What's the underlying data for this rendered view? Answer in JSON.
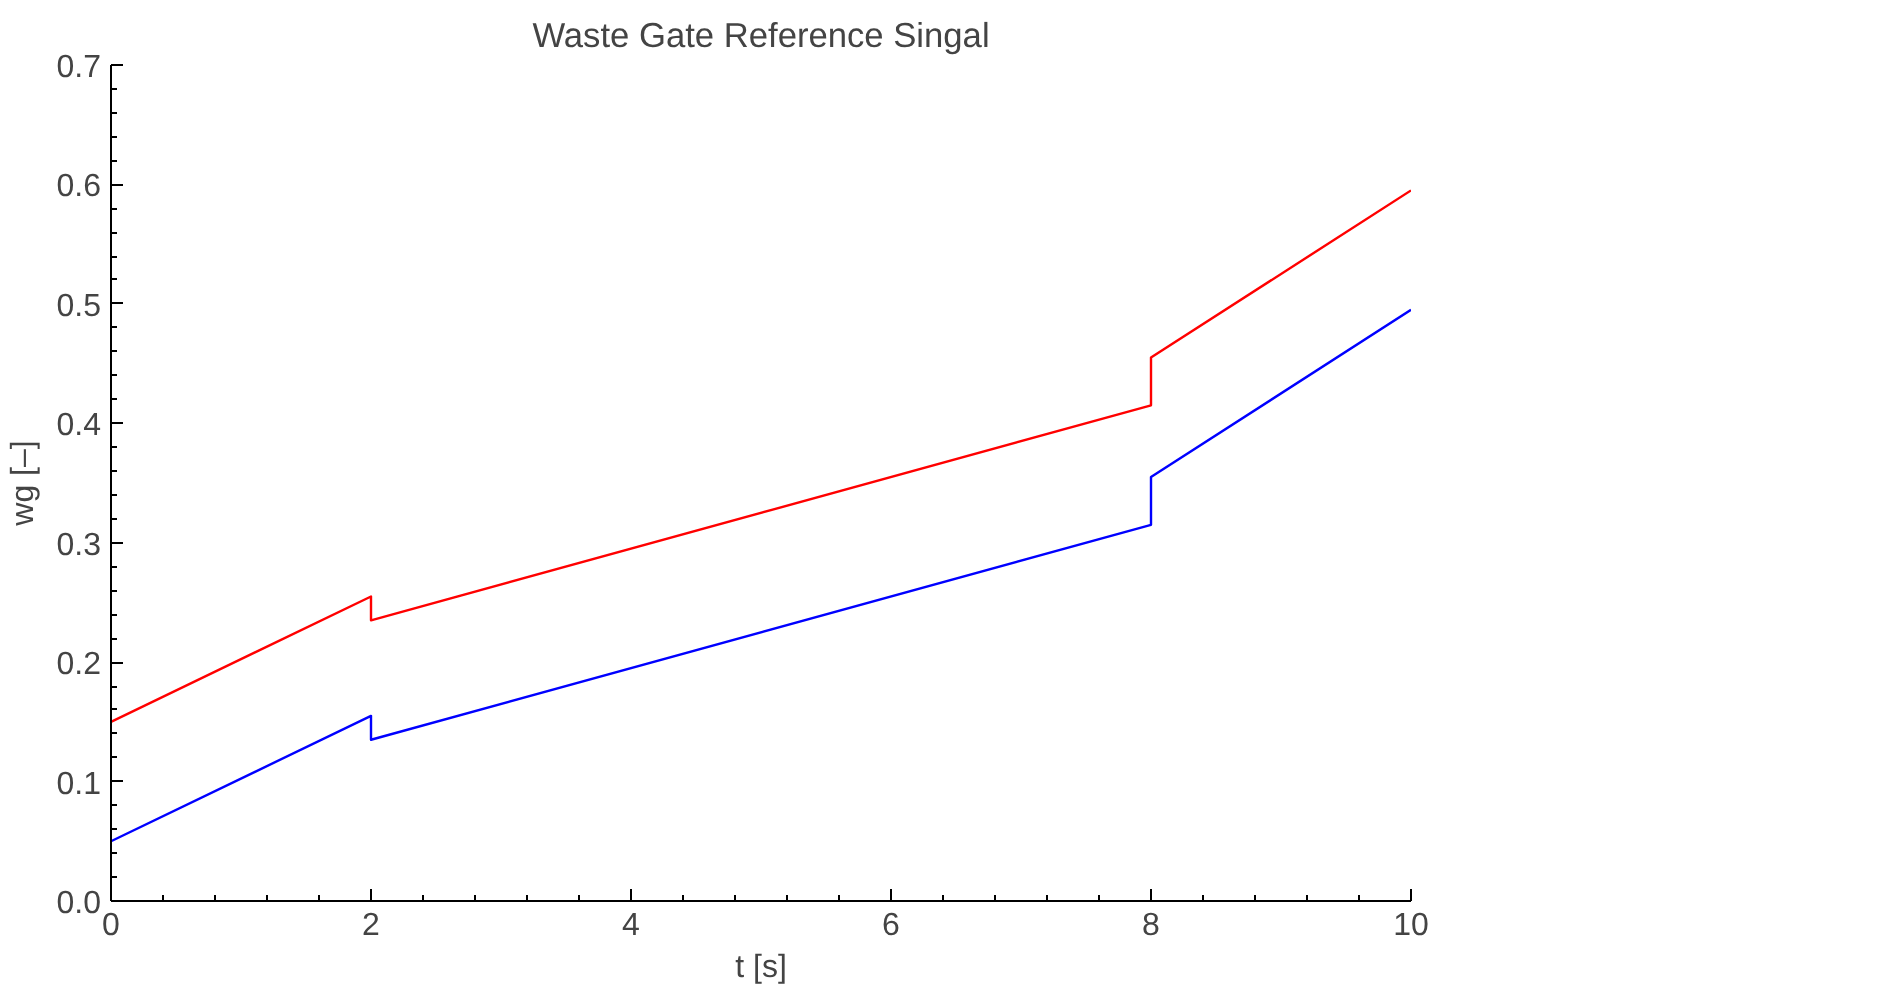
{
  "chart_data": {
    "type": "line",
    "title": "Waste Gate Reference Singal",
    "xlabel": "t [s]",
    "ylabel": "wg [–]",
    "series": [
      {
        "color": "#0000ff",
        "x": [
          0,
          2,
          2,
          8,
          8,
          10
        ],
        "values": [
          0.05,
          0.155,
          0.135,
          0.315,
          0.355,
          0.495
        ]
      },
      {
        "color": "#ff0000",
        "x": [
          0,
          2,
          2,
          8,
          8,
          10
        ],
        "values": [
          0.15,
          0.255,
          0.235,
          0.415,
          0.455,
          0.595
        ]
      }
    ],
    "xlim": [
      0,
      10
    ],
    "ylim": [
      0,
      0.7
    ],
    "xticks": [
      0,
      2,
      4,
      6,
      8,
      10
    ],
    "yticks": [
      {
        "value": 0,
        "label": "0.0"
      },
      0.1,
      0.2,
      0.3,
      0.4,
      0.5,
      0.6,
      0.7
    ],
    "grid": false,
    "marker": "none",
    "line_style": "solid"
  }
}
